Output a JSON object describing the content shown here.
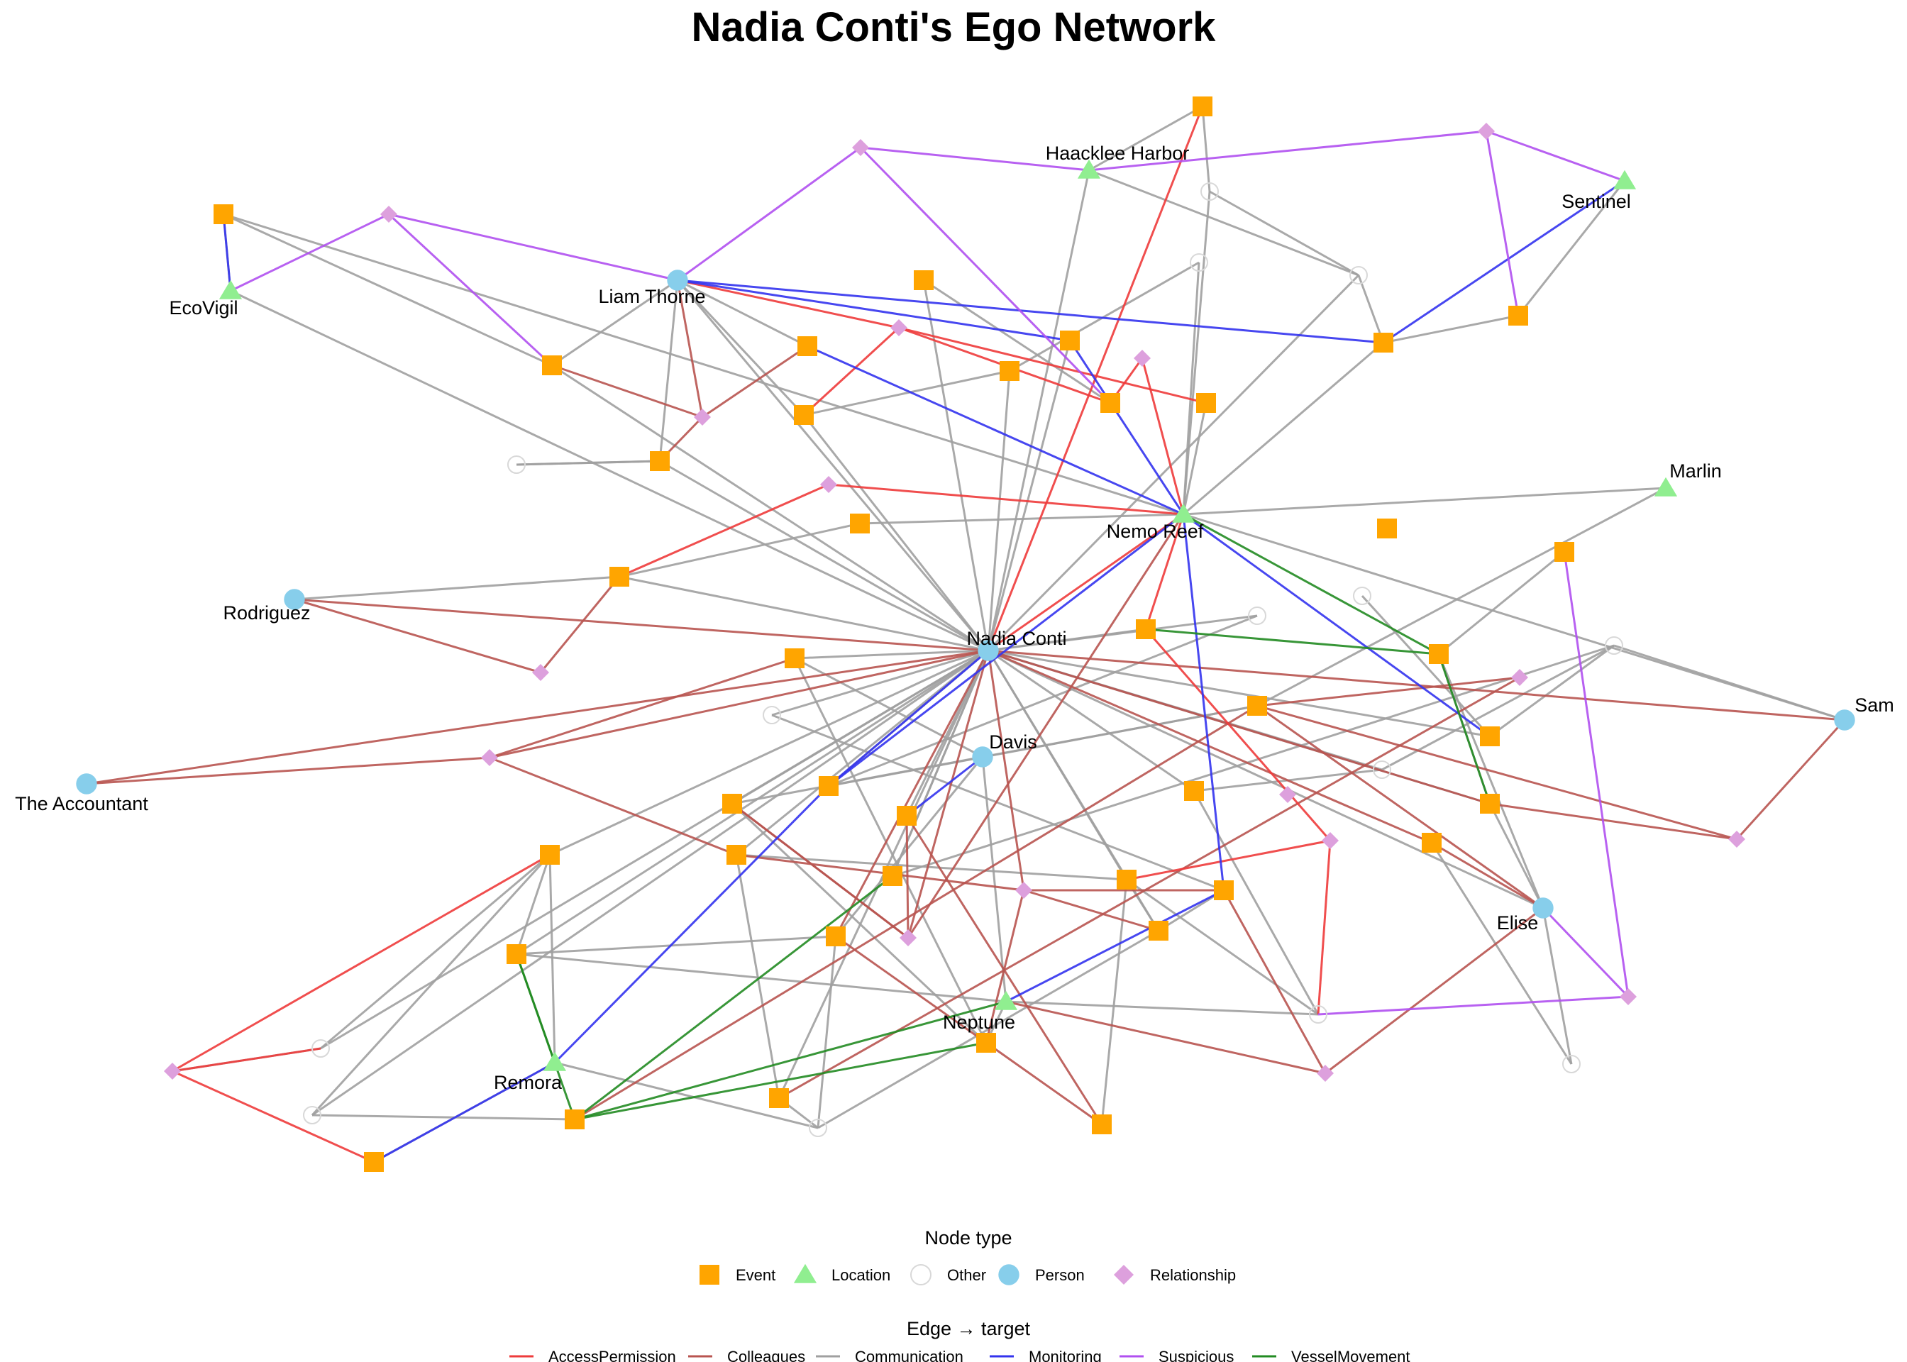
{
  "title": "Nadia Conti's Ego Network",
  "colors": {
    "Event": "#FFA500",
    "Location": "#90EE90",
    "Other": "#D8D8D8",
    "Person": "#87CEEB",
    "Relationship": "#DDA0DD",
    "AccessPermission": "#EE3B3B",
    "Colleagues": "#B85450",
    "Communication": "#A0A0A0",
    "Monitoring": "#3333EE",
    "Suspicious": "#B050F0",
    "VesselMovement": "#228B22"
  },
  "node_legend": {
    "title": "Node type",
    "items": [
      {
        "type": "Event",
        "shape": "square",
        "label": "Event"
      },
      {
        "type": "Location",
        "shape": "triangle",
        "label": "Location"
      },
      {
        "type": "Other",
        "shape": "open-circle",
        "label": "Other"
      },
      {
        "type": "Person",
        "shape": "circle",
        "label": "Person"
      },
      {
        "type": "Relationship",
        "shape": "diamond",
        "label": "Relationship"
      }
    ]
  },
  "edge_legend": {
    "title": "Edge → target",
    "items": [
      {
        "type": "AccessPermission",
        "label": "AccessPermission"
      },
      {
        "type": "Colleagues",
        "label": "Colleagues"
      },
      {
        "type": "Communication",
        "label": "Communication"
      },
      {
        "type": "Monitoring",
        "label": "Monitoring"
      },
      {
        "type": "Suspicious",
        "label": "Suspicious"
      },
      {
        "type": "VesselMovement",
        "label": "VesselMovement"
      }
    ]
  },
  "node_labels": {
    "nadia": "Nadia Conti",
    "davis": "Davis",
    "liam": "Liam Thorne",
    "rodriguez": "Rodriguez",
    "accountant": "The Accountant",
    "sam": "Sam",
    "elise": "Elise",
    "nemo": "Nemo Reef",
    "haacklee": "Haacklee Harbor",
    "sentinel": "Sentinel",
    "ecovigil": "EcoVigil",
    "marlin": "Marlin",
    "neptune": "Neptune",
    "remora": "Remora"
  }
}
